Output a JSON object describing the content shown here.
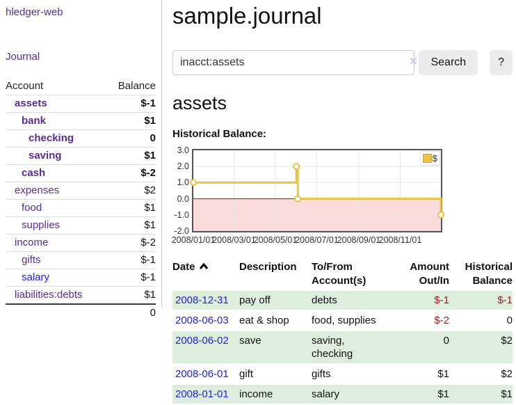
{
  "brand": "hledger-web",
  "nav": {
    "journal": "Journal"
  },
  "sidebar": {
    "headers": {
      "account": "Account",
      "balance": "Balance"
    },
    "accounts": [
      {
        "name": "assets",
        "balance": "$-1"
      },
      {
        "name": "bank",
        "balance": "$1"
      },
      {
        "name": "checking",
        "balance": "0"
      },
      {
        "name": "saving",
        "balance": "$1"
      },
      {
        "name": "cash",
        "balance": "$-2"
      },
      {
        "name": "expenses",
        "balance": "$2"
      },
      {
        "name": "food",
        "balance": "$1"
      },
      {
        "name": "supplies",
        "balance": "$1"
      },
      {
        "name": "income",
        "balance": "$-2"
      },
      {
        "name": "gifts",
        "balance": "$-1"
      },
      {
        "name": "salary",
        "balance": "$-1"
      },
      {
        "name": "liabilities:debts",
        "balance": "$1"
      }
    ],
    "total": "0"
  },
  "main": {
    "title": "sample.journal",
    "search": {
      "value": "inacct:assets",
      "clear_icon": "×",
      "button": "Search",
      "help": "?"
    },
    "heading": "assets",
    "chart_title": "Historical Balance:"
  },
  "chart_data": {
    "type": "line",
    "subtype": "step",
    "title": "Historical Balance:",
    "series": [
      {
        "name": "$",
        "color": "#edc240",
        "points": [
          [
            "2008-01-01",
            1.0
          ],
          [
            "2008-06-01",
            2.0
          ],
          [
            "2008-06-03",
            0.0
          ],
          [
            "2008-12-31",
            -1.0
          ]
        ]
      }
    ],
    "xlim": [
      "2008-01-01",
      "2008-12-31"
    ],
    "ylim": [
      -2.0,
      3.0
    ],
    "y_ticks": [
      3.0,
      2.0,
      1.0,
      0.0,
      -1.0,
      -2.0
    ],
    "x_ticks": [
      "2008/01/01",
      "2008/03/01",
      "2008/05/01",
      "2008/07/01",
      "2008/09/01",
      "2008/11/01"
    ],
    "grid": true,
    "legend_position": "top-right",
    "negative_region_fill": "#fbdcdc",
    "zero_line_color": "#991111"
  },
  "register": {
    "headers": {
      "date": "Date",
      "description": "Description",
      "accounts": "To/From Account(s)",
      "amount": "Amount Out/In",
      "balance": "Historical Balance"
    },
    "rows": [
      {
        "date": "2008-12-31",
        "description": "pay off",
        "accounts": "debts",
        "amount": "$-1",
        "balance": "$-1"
      },
      {
        "date": "2008-06-03",
        "description": "eat & shop",
        "accounts": "food, supplies",
        "amount": "$-2",
        "balance": "0"
      },
      {
        "date": "2008-06-02",
        "description": "save",
        "accounts": "saving, checking",
        "amount": "0",
        "balance": "$2"
      },
      {
        "date": "2008-06-01",
        "description": "gift",
        "accounts": "gifts",
        "amount": "$1",
        "balance": "$2"
      },
      {
        "date": "2008-01-01",
        "description": "income",
        "accounts": "salary",
        "amount": "$1",
        "balance": "$1"
      }
    ]
  }
}
